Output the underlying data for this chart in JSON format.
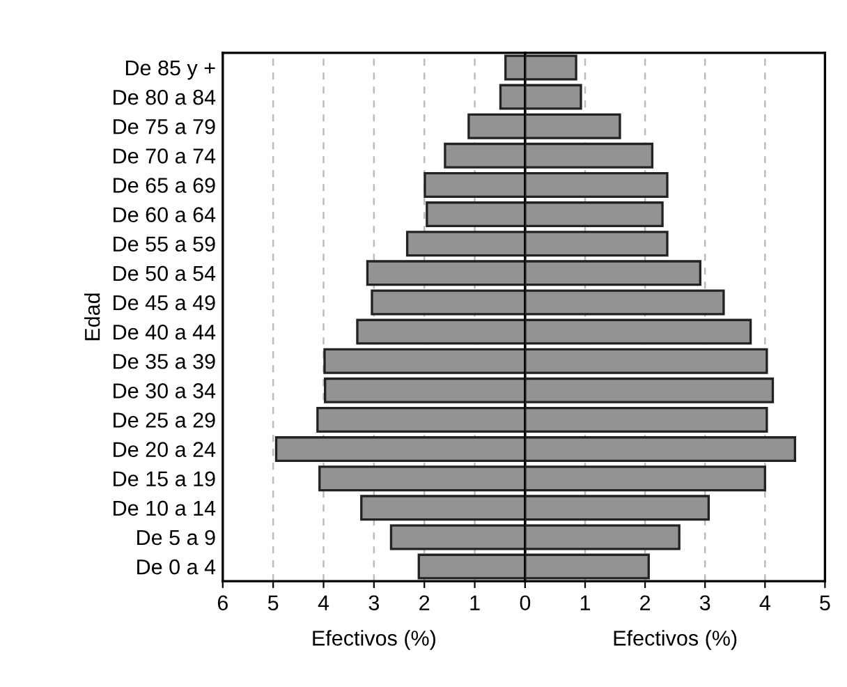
{
  "chart_data": [
    {
      "type": "bar",
      "orientation": "horizontal",
      "ylabel": "Edad",
      "xlabel": "Efectivos (%)",
      "categories": [
        "De 85 y +",
        "De 80 a 84",
        "De 75 a 79",
        "De 70 a 74",
        "De 65 a 69",
        "De 60 a 64",
        "De 55 a 59",
        "De 50 a 54",
        "De 45 a 49",
        "De 40 a 44",
        "De 35 a 39",
        "De 30 a 34",
        "De 25 a 29",
        "De 20 a 24",
        "De 15 a 19",
        "De 10 a 14",
        "De 5 a 9",
        "De 0 a 4"
      ],
      "series": [
        {
          "color": "#939393",
          "values": [
            0.39,
            0.49,
            1.12,
            1.59,
            1.99,
            1.95,
            2.34,
            3.13,
            3.04,
            3.33,
            3.98,
            3.97,
            4.12,
            4.94,
            4.08,
            3.25,
            2.66,
            2.11
          ]
        }
      ],
      "xlim": [
        6,
        0
      ],
      "xticks": [
        6,
        5,
        4,
        3,
        2,
        1,
        0
      ],
      "grid": "x"
    },
    {
      "type": "bar",
      "orientation": "horizontal",
      "xlabel": "Efectivos (%)",
      "categories": [
        null,
        null,
        null,
        null,
        null,
        null,
        null,
        null,
        null,
        null,
        null,
        null,
        null,
        null,
        null,
        null,
        null,
        null
      ],
      "series": [
        {
          "color": "#939393",
          "values": [
            0.85,
            0.93,
            1.58,
            2.12,
            2.37,
            2.29,
            2.37,
            2.92,
            3.31,
            3.76,
            4.03,
            4.13,
            4.03,
            4.5,
            4.0,
            3.06,
            2.57,
            2.06
          ]
        }
      ],
      "xlim": [
        0,
        5
      ],
      "xticks": [
        {
          "value": 0,
          "label": null
        },
        1,
        2,
        3,
        4,
        5
      ],
      "grid": "x"
    }
  ]
}
